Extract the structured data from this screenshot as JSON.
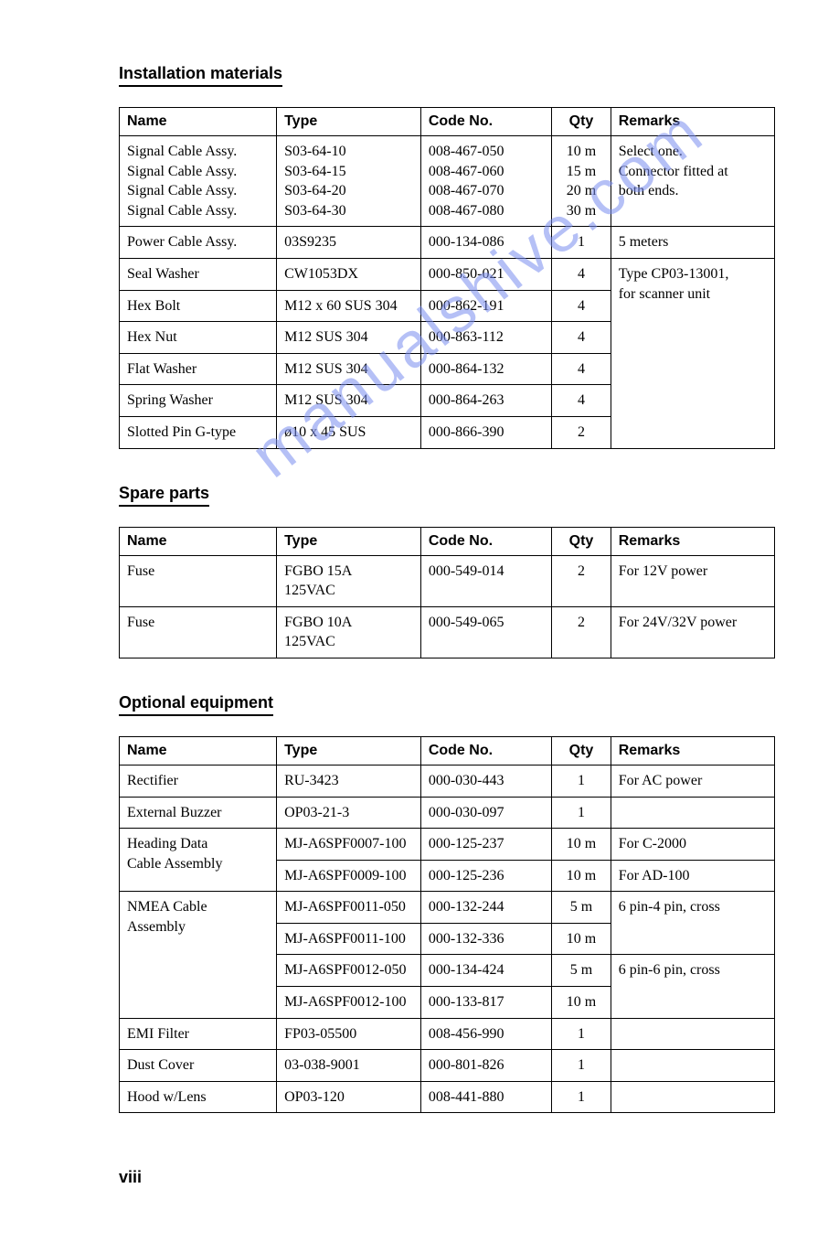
{
  "document": {
    "watermark": "manualshive.com",
    "page_number": "viii",
    "background_color": "#ffffff",
    "text_color": "#000000",
    "border_color": "#000000",
    "watermark_color": "#7a8ef0",
    "header_font": "Arial",
    "body_font": "Times New Roman",
    "title_fontsize": 18,
    "table_fontsize": 16
  },
  "sections": {
    "installation": {
      "title": "Installation materials",
      "headers": {
        "name": "Name",
        "type": "Type",
        "code": "Code No.",
        "qty": "Qty",
        "remarks": "Remarks"
      },
      "rows": [
        {
          "name": [
            "Signal Cable Assy.",
            "Signal Cable Assy.",
            "Signal Cable Assy.",
            "Signal Cable Assy."
          ],
          "type": [
            "S03-64-10",
            "S03-64-15",
            "S03-64-20",
            "S03-64-30"
          ],
          "code": [
            "008-467-050",
            "008-467-060",
            "008-467-070",
            "008-467-080"
          ],
          "qty": [
            "10 m",
            "15 m",
            "20 m",
            "30 m"
          ],
          "remarks": [
            "Select one.",
            "Connector fitted at",
            "both ends."
          ]
        },
        {
          "name": [
            "Power Cable Assy."
          ],
          "type": [
            "03S9235"
          ],
          "code": [
            "000-134-086"
          ],
          "qty": [
            "1"
          ],
          "remarks": [
            "5 meters"
          ]
        },
        {
          "name": [
            "Seal Washer"
          ],
          "type": [
            "CW1053DX"
          ],
          "code": [
            "000-850-021"
          ],
          "qty": [
            "4"
          ],
          "remarks": [
            "Type CP03-13001,",
            "for scanner unit"
          ],
          "remarks_rowspan": 6
        },
        {
          "name": [
            "Hex Bolt"
          ],
          "type": [
            "M12 x 60 SUS 304"
          ],
          "code": [
            "000-862-191"
          ],
          "qty": [
            "4"
          ]
        },
        {
          "name": [
            "Hex Nut"
          ],
          "type": [
            "M12 SUS 304"
          ],
          "code": [
            "000-863-112"
          ],
          "qty": [
            "4"
          ]
        },
        {
          "name": [
            "Flat Washer"
          ],
          "type": [
            "M12 SUS 304"
          ],
          "code": [
            "000-864-132"
          ],
          "qty": [
            "4"
          ]
        },
        {
          "name": [
            "Spring Washer"
          ],
          "type": [
            "M12 SUS 304"
          ],
          "code": [
            "000-864-263"
          ],
          "qty": [
            "4"
          ]
        },
        {
          "name": [
            "Slotted Pin G-type"
          ],
          "type": [
            "ø10 x 45 SUS"
          ],
          "code": [
            "000-866-390"
          ],
          "qty": [
            "2"
          ]
        }
      ]
    },
    "spare": {
      "title": "Spare parts",
      "headers": {
        "name": "Name",
        "type": "Type",
        "code": "Code No.",
        "qty": "Qty",
        "remarks": "Remarks"
      },
      "rows": [
        {
          "name": [
            "Fuse"
          ],
          "type": [
            "FGBO 15A",
            "125VAC"
          ],
          "code": [
            "000-549-014"
          ],
          "qty": [
            "2"
          ],
          "remarks": [
            "For 12V power"
          ]
        },
        {
          "name": [
            "Fuse"
          ],
          "type": [
            "FGBO 10A",
            "125VAC"
          ],
          "code": [
            "000-549-065"
          ],
          "qty": [
            "2"
          ],
          "remarks": [
            "For 24V/32V power"
          ]
        }
      ]
    },
    "optional": {
      "title": "Optional equipment",
      "headers": {
        "name": "Name",
        "type": "Type",
        "code": "Code No.",
        "qty": "Qty",
        "remarks": "Remarks"
      },
      "rows": [
        {
          "name": [
            "Rectifier"
          ],
          "type": [
            "RU-3423"
          ],
          "code": [
            "000-030-443"
          ],
          "qty": [
            "1"
          ],
          "remarks": [
            "For AC power"
          ]
        },
        {
          "name": [
            "External Buzzer"
          ],
          "type": [
            "OP03-21-3"
          ],
          "code": [
            "000-030-097"
          ],
          "qty": [
            "1"
          ],
          "remarks": [
            ""
          ]
        },
        {
          "name": [
            "Heading Data",
            "Cable Assembly"
          ],
          "name_rowspan": 2,
          "type": [
            "MJ-A6SPF0007-100"
          ],
          "code": [
            "000-125-237"
          ],
          "qty": [
            "10 m"
          ],
          "remarks": [
            "For C-2000"
          ]
        },
        {
          "type": [
            "MJ-A6SPF0009-100"
          ],
          "code": [
            "000-125-236"
          ],
          "qty": [
            "10 m"
          ],
          "remarks": [
            "For AD-100"
          ]
        },
        {
          "name": [
            "NMEA Cable",
            "Assembly"
          ],
          "name_rowspan": 4,
          "type": [
            "MJ-A6SPF0011-050"
          ],
          "code": [
            "000-132-244"
          ],
          "qty": [
            "5 m"
          ],
          "remarks": [
            "6 pin-4 pin, cross"
          ],
          "remarks_rowspan": 2
        },
        {
          "type": [
            "MJ-A6SPF0011-100"
          ],
          "code": [
            "000-132-336"
          ],
          "qty": [
            "10 m"
          ]
        },
        {
          "type": [
            "MJ-A6SPF0012-050"
          ],
          "code": [
            "000-134-424"
          ],
          "qty": [
            "5 m"
          ],
          "remarks": [
            "6 pin-6 pin, cross"
          ],
          "remarks_rowspan": 2
        },
        {
          "type": [
            "MJ-A6SPF0012-100"
          ],
          "code": [
            "000-133-817"
          ],
          "qty": [
            "10 m"
          ]
        },
        {
          "name": [
            "EMI Filter"
          ],
          "type": [
            "FP03-05500"
          ],
          "code": [
            "008-456-990"
          ],
          "qty": [
            "1"
          ],
          "remarks": [
            ""
          ]
        },
        {
          "name": [
            "Dust Cover"
          ],
          "type": [
            "03-038-9001"
          ],
          "code": [
            "000-801-826"
          ],
          "qty": [
            "1"
          ],
          "remarks": [
            ""
          ]
        },
        {
          "name": [
            "Hood w/Lens"
          ],
          "type": [
            "OP03-120"
          ],
          "code": [
            "008-441-880"
          ],
          "qty": [
            "1"
          ],
          "remarks": [
            ""
          ]
        }
      ]
    }
  }
}
